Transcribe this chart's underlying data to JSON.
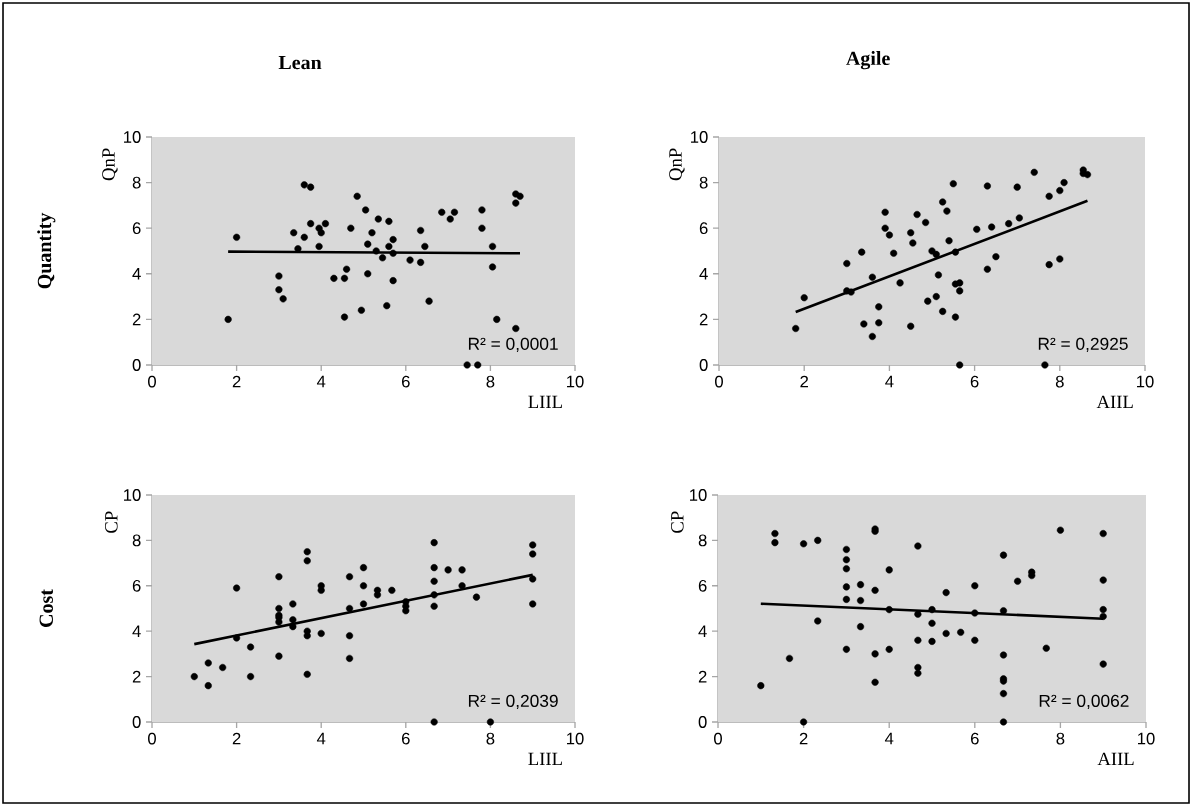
{
  "chart_data": [
    {
      "type": "scatter",
      "title": "Lean",
      "ylabel": "QnP",
      "xlabel": "LIIL",
      "annotations": [
        "Quantity",
        "R² = 0,0001"
      ],
      "xlim": [
        0,
        10
      ],
      "ylim": [
        0,
        10
      ],
      "xticks": [
        0,
        2,
        4,
        6,
        8,
        10
      ],
      "yticks": [
        0,
        2,
        4,
        6,
        8,
        10
      ],
      "series": [
        {
          "marker": "circle",
          "color": "#000000",
          "x": [
            1.8,
            2.0,
            3.0,
            3.0,
            3.1,
            3.35,
            3.45,
            3.6,
            3.6,
            3.75,
            3.75,
            3.95,
            3.95,
            4.0,
            4.1,
            4.3,
            4.55,
            4.55,
            4.6,
            4.7,
            4.85,
            4.95,
            5.05,
            5.1,
            5.1,
            5.2,
            5.3,
            5.35,
            5.45,
            5.55,
            5.6,
            5.6,
            5.7,
            5.7,
            5.7,
            6.1,
            6.35,
            6.35,
            6.45,
            6.55,
            6.85,
            7.05,
            7.15,
            7.45,
            7.7,
            7.8,
            7.8,
            8.05,
            8.05,
            8.15,
            8.6,
            8.6,
            8.6,
            8.7
          ],
          "values": [
            2.0,
            5.6,
            3.9,
            3.3,
            2.9,
            5.8,
            5.1,
            7.9,
            5.6,
            7.8,
            6.2,
            6.0,
            5.2,
            5.8,
            6.2,
            3.8,
            3.8,
            2.1,
            4.2,
            6.0,
            7.4,
            2.4,
            6.8,
            5.3,
            4.0,
            5.8,
            5.0,
            6.4,
            4.7,
            2.6,
            6.3,
            5.2,
            5.5,
            4.9,
            3.7,
            4.6,
            5.9,
            4.5,
            5.2,
            2.8,
            6.7,
            6.4,
            6.7,
            0,
            0,
            6.8,
            6.0,
            5.2,
            4.3,
            2.0,
            7.5,
            7.1,
            1.6,
            7.4
          ]
        },
        {
          "type": "line",
          "color": "#000000",
          "x": [
            1.8,
            8.7
          ],
          "values": [
            4.97,
            4.9
          ]
        }
      ]
    },
    {
      "type": "scatter",
      "title": "Agile",
      "ylabel": "QnP",
      "xlabel": "AIIL",
      "annotations": [
        "R² = 0,2925"
      ],
      "xlim": [
        0,
        10
      ],
      "ylim": [
        0,
        10
      ],
      "xticks": [
        0,
        2,
        4,
        6,
        8,
        10
      ],
      "yticks": [
        0,
        2,
        4,
        6,
        8,
        10
      ],
      "series": [
        {
          "marker": "circle",
          "color": "#000000",
          "x": [
            1.8,
            2.0,
            3.0,
            3.0,
            3.1,
            3.35,
            3.4,
            3.6,
            3.6,
            3.75,
            3.75,
            3.9,
            3.9,
            4.0,
            4.1,
            4.25,
            4.5,
            4.5,
            4.55,
            4.65,
            4.85,
            4.9,
            5.0,
            5.1,
            5.1,
            5.15,
            5.25,
            5.25,
            5.35,
            5.4,
            5.5,
            5.55,
            5.55,
            5.55,
            5.65,
            5.65,
            5.65,
            6.05,
            6.3,
            6.3,
            6.4,
            6.5,
            6.8,
            7.0,
            7.05,
            7.4,
            7.65,
            7.75,
            7.75,
            8.0,
            8.0,
            8.1,
            8.55,
            8.55,
            8.65
          ],
          "values": [
            1.6,
            2.95,
            4.45,
            3.25,
            3.2,
            4.95,
            1.8,
            3.85,
            1.25,
            2.55,
            1.85,
            6.7,
            6.0,
            5.7,
            4.9,
            3.6,
            5.8,
            1.7,
            5.35,
            6.6,
            6.25,
            2.8,
            5.0,
            4.85,
            3.0,
            3.95,
            7.15,
            2.35,
            6.75,
            5.45,
            7.95,
            4.95,
            3.55,
            2.1,
            3.6,
            3.25,
            0,
            5.95,
            7.85,
            4.2,
            6.05,
            4.75,
            6.2,
            7.8,
            6.45,
            8.45,
            0,
            7.4,
            4.4,
            7.65,
            4.65,
            8.0,
            8.55,
            8.4,
            8.35
          ]
        },
        {
          "type": "line",
          "color": "#000000",
          "x": [
            1.8,
            8.65
          ],
          "values": [
            2.32,
            7.2
          ]
        }
      ]
    },
    {
      "type": "scatter",
      "ylabel": "CP",
      "xlabel": "LIIL",
      "annotations": [
        "Cost",
        "R² = 0,2039"
      ],
      "xlim": [
        0,
        10
      ],
      "ylim": [
        0,
        10
      ],
      "xticks": [
        0,
        2,
        4,
        6,
        8,
        10
      ],
      "yticks": [
        0,
        2,
        4,
        6,
        8,
        10
      ],
      "series": [
        {
          "marker": "circle",
          "color": "#000000",
          "x": [
            1.0,
            1.33,
            1.33,
            1.67,
            2.0,
            2.0,
            2.33,
            2.33,
            3.0,
            3.0,
            3.0,
            3.0,
            3.0,
            3.0,
            3.33,
            3.33,
            3.33,
            3.67,
            3.67,
            3.67,
            3.67,
            3.67,
            4.0,
            4.0,
            4.0,
            4.67,
            4.67,
            4.67,
            4.67,
            5.0,
            5.0,
            5.0,
            5.33,
            5.33,
            5.67,
            6.0,
            6.0,
            6.0,
            6.67,
            6.67,
            6.67,
            6.67,
            6.67,
            6.67,
            7.0,
            7.33,
            7.33,
            7.67,
            8.0,
            9.0,
            9.0,
            9.0,
            9.0
          ],
          "values": [
            2.0,
            1.6,
            2.6,
            2.4,
            5.9,
            3.7,
            3.3,
            2.0,
            6.4,
            5.0,
            4.7,
            4.6,
            4.4,
            2.9,
            5.2,
            4.5,
            4.2,
            7.5,
            7.1,
            4.0,
            3.8,
            2.1,
            6.0,
            5.8,
            3.9,
            6.4,
            5.0,
            3.8,
            2.8,
            6.8,
            6.0,
            5.2,
            5.8,
            5.6,
            5.8,
            5.3,
            5.1,
            4.9,
            7.9,
            6.8,
            6.2,
            5.6,
            5.1,
            0,
            6.7,
            6.7,
            6.0,
            5.5,
            0,
            7.8,
            7.4,
            6.3,
            5.2
          ]
        },
        {
          "type": "line",
          "color": "#000000",
          "x": [
            1.0,
            9.0
          ],
          "values": [
            3.43,
            6.48
          ]
        }
      ]
    },
    {
      "type": "scatter",
      "ylabel": "CP",
      "xlabel": "AIIL",
      "annotations": [
        "R² = 0,0062"
      ],
      "xlim": [
        0,
        10
      ],
      "ylim": [
        0,
        10
      ],
      "xticks": [
        0,
        2,
        4,
        6,
        8,
        10
      ],
      "yticks": [
        0,
        2,
        4,
        6,
        8,
        10
      ],
      "series": [
        {
          "marker": "circle",
          "color": "#000000",
          "x": [
            1.0,
            1.33,
            1.33,
            1.67,
            2.0,
            2.0,
            2.33,
            2.33,
            3.0,
            3.0,
            3.0,
            3.0,
            3.0,
            3.0,
            3.33,
            3.33,
            3.33,
            3.67,
            3.67,
            3.67,
            3.67,
            3.67,
            4.0,
            4.0,
            4.0,
            4.67,
            4.67,
            4.67,
            4.67,
            4.67,
            5.0,
            5.0,
            5.0,
            5.33,
            5.33,
            5.67,
            6.0,
            6.0,
            6.0,
            6.67,
            6.67,
            6.67,
            6.67,
            6.67,
            6.67,
            6.67,
            7.0,
            7.33,
            7.33,
            7.67,
            8.0,
            9.0,
            9.0,
            9.0,
            9.0,
            9.0
          ],
          "values": [
            1.6,
            8.3,
            7.9,
            2.8,
            7.85,
            0,
            8.0,
            4.45,
            7.6,
            7.15,
            6.75,
            5.95,
            5.4,
            3.2,
            6.05,
            5.35,
            4.2,
            8.5,
            8.4,
            5.8,
            3.0,
            1.75,
            6.7,
            4.95,
            3.2,
            7.75,
            4.75,
            3.6,
            2.4,
            2.15,
            4.95,
            4.35,
            3.55,
            5.7,
            3.9,
            3.95,
            6.0,
            4.8,
            3.6,
            7.35,
            4.9,
            2.95,
            1.9,
            1.8,
            1.25,
            0,
            6.2,
            6.6,
            6.45,
            3.25,
            8.45,
            8.3,
            6.25,
            4.95,
            4.65,
            2.55
          ]
        },
        {
          "type": "line",
          "color": "#000000",
          "x": [
            1.0,
            9.0
          ],
          "values": [
            5.21,
            4.55
          ]
        }
      ]
    }
  ]
}
